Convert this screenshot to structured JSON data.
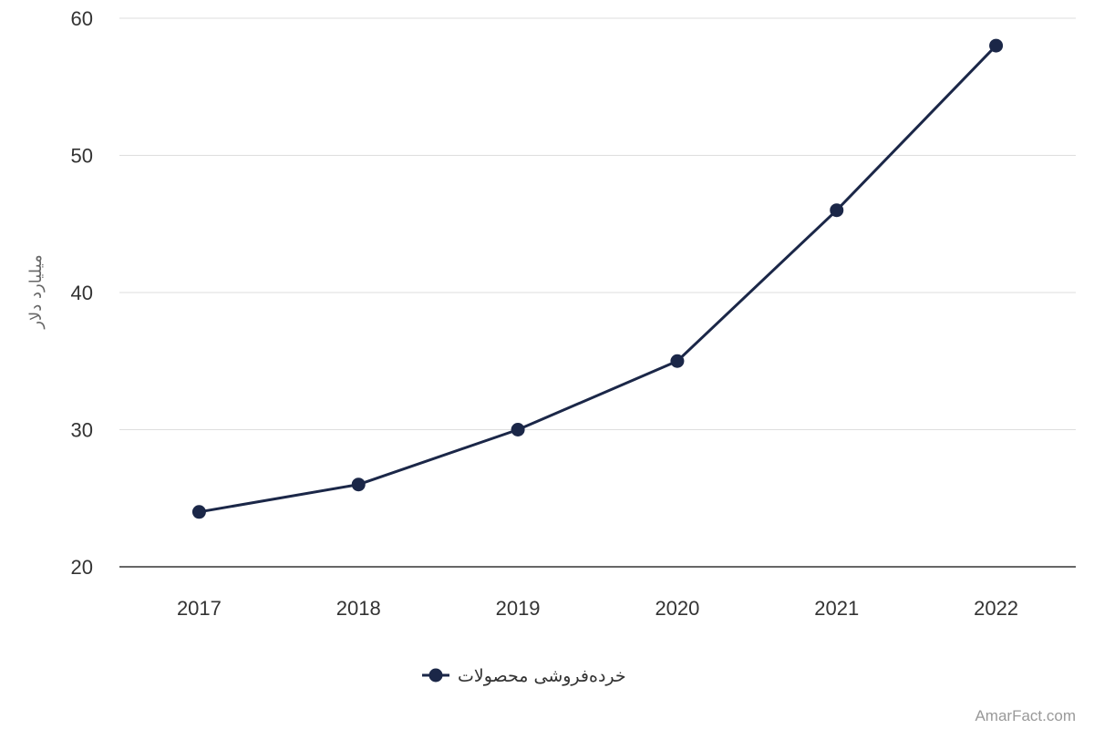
{
  "chart_data": {
    "type": "line",
    "x": [
      "2017",
      "2018",
      "2019",
      "2020",
      "2021",
      "2022"
    ],
    "series": [
      {
        "name": "خرده‌فروشی محصولات",
        "values": [
          24,
          26,
          30,
          35,
          46,
          58
        ],
        "color": "#1b2748"
      }
    ],
    "ylabel": "میلیارد دلار",
    "ylim": [
      20,
      60
    ],
    "yticks": [
      "20",
      "30",
      "40",
      "50",
      "60"
    ],
    "grid": true,
    "legend": "bottom-center"
  },
  "credit": "AmarFact.com"
}
